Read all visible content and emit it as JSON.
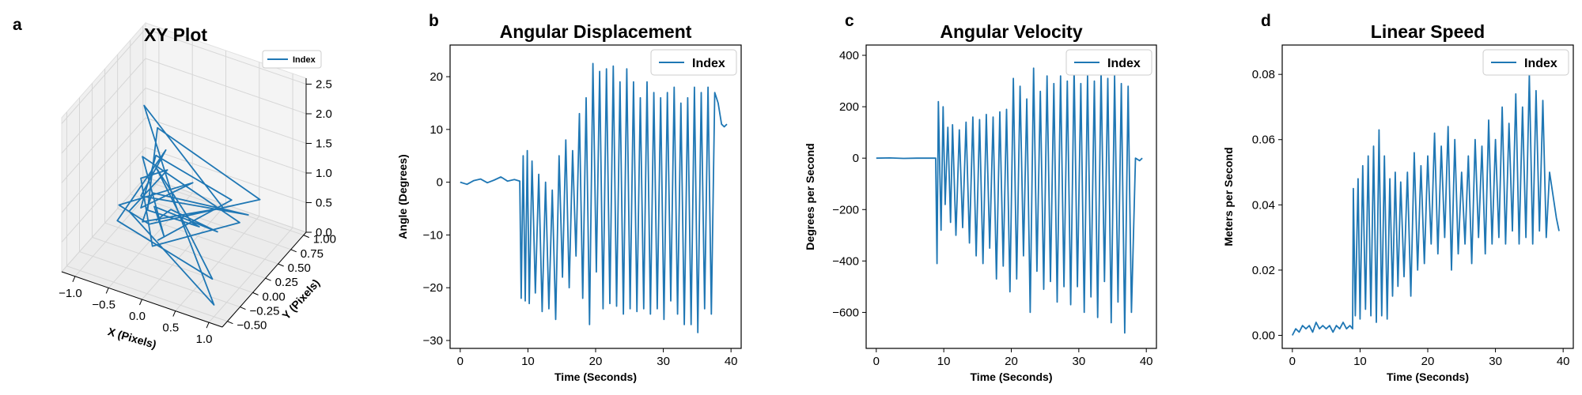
{
  "colors": {
    "series": "#1f77b4",
    "frame": "#000000",
    "pane": "#f2f2f2",
    "grid": "#d6d6d6"
  },
  "chart_data": [
    {
      "panel_label": "a",
      "type": "line",
      "projection": "3d",
      "title": "XY Plot",
      "xlabel": "X (Pixels)",
      "ylabel": "Y (Pixels)",
      "zlabel": "",
      "xticks": [
        "−1.0",
        "−0.5",
        "0.0",
        "0.5",
        "1.0"
      ],
      "yticks": [
        "−0.50",
        "−0.25",
        "0.00",
        "0.25",
        "0.50",
        "0.75",
        "1.00"
      ],
      "zticks": [
        "0.0",
        "0.5",
        "1.0",
        "1.5",
        "2.0",
        "2.5"
      ],
      "xlim": [
        -1.2,
        1.2
      ],
      "ylim": [
        -0.6,
        1.05
      ],
      "zlim": [
        0,
        2.6
      ],
      "legend": {
        "label": "Index",
        "position": "top-right"
      },
      "grid": true,
      "series": [
        {
          "name": "Index",
          "x": [
            -0.4,
            -0.1,
            0.9,
            -0.5,
            -0.2,
            -0.6,
            0.7,
            -0.3,
            -0.7,
            0.0,
            -0.8,
            1.0,
            -0.2,
            -0.5,
            0.3,
            -0.6,
            -0.3,
            0.6,
            -0.7,
            -0.1,
            -0.9,
            0.9,
            -0.4,
            -0.1,
            0.4,
            -0.6,
            -0.3,
            0.7,
            -0.5,
            -0.8,
            0.0,
            -0.7,
            -0.4,
            0.2,
            -0.3
          ],
          "y": [
            0.2,
            0.1,
            -0.3,
            0.3,
            0.1,
            0.2,
            0.4,
            0.0,
            0.3,
            -0.1,
            0.2,
            -0.5,
            0.3,
            0.1,
            0.6,
            0.2,
            0.0,
            0.7,
            0.3,
            0.0,
            0.1,
            -0.4,
            0.2,
            0.5,
            0.0,
            0.3,
            0.1,
            0.8,
            0.2,
            0.0,
            0.4,
            0.3,
            0.2,
            0.9,
            0.1
          ],
          "z": [
            0.4,
            0.8,
            1.2,
            0.5,
            0.3,
            1.4,
            0.6,
            0.2,
            0.9,
            1.7,
            0.4,
            0.2,
            0.7,
            2.4,
            0.5,
            0.3,
            1.1,
            0.4,
            0.6,
            1.9,
            0.3,
            0.5,
            1.3,
            0.2,
            0.8,
            0.4,
            2.1,
            0.6,
            0.3,
            0.7,
            1.0,
            0.4,
            1.5,
            0.3,
            0.2
          ]
        }
      ]
    },
    {
      "panel_label": "b",
      "type": "line",
      "title": "Angular Displacement",
      "xlabel": "Time (Seconds)",
      "ylabel": "Angle (Degrees)",
      "xlim": [
        -1.5,
        41.5
      ],
      "ylim": [
        -31.5,
        26
      ],
      "xticks": [
        0,
        10,
        20,
        30,
        40
      ],
      "yticks": [
        -30,
        -20,
        -10,
        0,
        10,
        20
      ],
      "legend": {
        "label": "Index",
        "position": "top-right"
      },
      "grid": false,
      "series": [
        {
          "name": "Index",
          "x": [
            0,
            1,
            2,
            3,
            4,
            5,
            6,
            7,
            8,
            8.8,
            9.0,
            9.3,
            9.6,
            9.9,
            10.2,
            10.6,
            11.1,
            11.6,
            12.1,
            12.6,
            13.1,
            13.6,
            14.1,
            14.6,
            15.1,
            15.6,
            16.1,
            16.6,
            17.1,
            17.6,
            18.1,
            18.6,
            19.1,
            19.6,
            20.1,
            20.6,
            21.1,
            21.6,
            22.1,
            22.6,
            23.1,
            23.6,
            24.1,
            24.6,
            25.1,
            25.6,
            26.1,
            26.6,
            27.1,
            27.6,
            28.1,
            28.6,
            29.1,
            29.6,
            30.1,
            30.6,
            31.1,
            31.6,
            32.1,
            32.6,
            33.1,
            33.6,
            34.1,
            34.6,
            35.1,
            35.6,
            36.1,
            36.6,
            37.1,
            37.6,
            38.1,
            38.6,
            39.0,
            39.4
          ],
          "y": [
            0,
            -0.4,
            0.3,
            0.6,
            -0.1,
            0.4,
            1.0,
            0.2,
            0.5,
            0.2,
            -22,
            5,
            -22.5,
            6,
            -23,
            4,
            -21,
            1.5,
            -24.5,
            0,
            -24,
            -1.5,
            -26,
            5,
            -18,
            8,
            -20,
            6,
            -14,
            13,
            -22,
            16,
            -27,
            22.5,
            -17,
            21,
            -24,
            21.5,
            -23,
            22,
            -23.5,
            19,
            -25,
            21.5,
            -24,
            19,
            -24.5,
            16,
            -24,
            19,
            -25,
            17,
            -24,
            16,
            -26,
            17,
            -22.5,
            18,
            -25,
            15,
            -27,
            16,
            -27,
            18,
            -28.5,
            17,
            -24,
            18,
            -25,
            17,
            15,
            11,
            10.5,
            11
          ]
        }
      ]
    },
    {
      "panel_label": "c",
      "type": "line",
      "title": "Angular Velocity",
      "xlabel": "Time (Seconds)",
      "ylabel": "Degrees per Second",
      "xlim": [
        -1.5,
        41.5
      ],
      "ylim": [
        -740,
        440
      ],
      "xticks": [
        0,
        10,
        20,
        30,
        40
      ],
      "yticks": [
        -600,
        -400,
        -200,
        0,
        200,
        400
      ],
      "legend": {
        "label": "Index",
        "position": "top-right"
      },
      "grid": false,
      "series": [
        {
          "name": "Index",
          "x": [
            0,
            2,
            4,
            6,
            8,
            8.8,
            9.0,
            9.2,
            9.6,
            9.9,
            10.2,
            10.6,
            11.0,
            11.3,
            11.8,
            12.3,
            12.8,
            13.3,
            13.8,
            14.3,
            14.8,
            15.3,
            15.8,
            16.3,
            16.8,
            17.3,
            17.8,
            18.3,
            18.8,
            19.3,
            19.8,
            20.3,
            20.8,
            21.3,
            21.8,
            22.3,
            22.8,
            23.3,
            23.8,
            24.3,
            24.8,
            25.3,
            25.8,
            26.3,
            26.8,
            27.3,
            27.8,
            28.3,
            28.8,
            29.3,
            29.8,
            30.3,
            30.8,
            31.3,
            31.8,
            32.3,
            32.8,
            33.3,
            33.8,
            34.3,
            34.8,
            35.3,
            35.8,
            36.3,
            36.8,
            37.3,
            37.8,
            38.4,
            39.0,
            39.4
          ],
          "y": [
            0,
            1,
            -1,
            0,
            0,
            0,
            -410,
            220,
            -280,
            200,
            -180,
            120,
            -250,
            130,
            -300,
            110,
            -270,
            140,
            -330,
            160,
            -380,
            150,
            -410,
            170,
            -350,
            160,
            -470,
            180,
            -420,
            190,
            -520,
            310,
            -470,
            280,
            -380,
            230,
            -600,
            350,
            -440,
            260,
            -510,
            320,
            -480,
            290,
            -560,
            320,
            -500,
            300,
            -570,
            350,
            -500,
            290,
            -600,
            320,
            -540,
            300,
            -620,
            340,
            -480,
            310,
            -640,
            320,
            -560,
            290,
            -680,
            280,
            -600,
            0,
            -10,
            0
          ]
        }
      ]
    },
    {
      "panel_label": "d",
      "type": "line",
      "title": "Linear Speed",
      "xlabel": "Time (Seconds)",
      "ylabel": "Meters per Second",
      "xlim": [
        -1.5,
        41.5
      ],
      "ylim": [
        -0.004,
        0.089
      ],
      "xticks": [
        0,
        10,
        20,
        30,
        40
      ],
      "yticks": [
        "0.00",
        "0.02",
        "0.04",
        "0.06",
        "0.08"
      ],
      "legend": {
        "label": "Index",
        "position": "top-right"
      },
      "grid": false,
      "series": [
        {
          "name": "Index",
          "x": [
            0,
            0.5,
            1,
            1.5,
            2,
            2.5,
            3,
            3.5,
            4,
            4.5,
            5,
            5.5,
            6,
            6.5,
            7,
            7.5,
            8,
            8.5,
            8.9,
            9.0,
            9.3,
            9.7,
            10.0,
            10.4,
            10.8,
            11.2,
            11.6,
            12.0,
            12.4,
            12.8,
            13.2,
            13.6,
            14.0,
            14.4,
            14.8,
            15.2,
            15.6,
            16.0,
            16.5,
            17.0,
            17.5,
            18.0,
            18.5,
            19.0,
            19.5,
            20.0,
            20.5,
            21.0,
            21.5,
            22.0,
            22.5,
            23.0,
            23.5,
            24.0,
            24.5,
            25.0,
            25.5,
            26.0,
            26.5,
            27.0,
            27.5,
            28.0,
            28.5,
            29.0,
            29.5,
            30.0,
            30.5,
            31.0,
            31.5,
            32.0,
            32.5,
            33.0,
            33.5,
            34.0,
            34.5,
            35.0,
            35.5,
            36.0,
            36.5,
            37.0,
            37.5,
            38.0,
            38.5,
            39.0,
            39.4
          ],
          "y": [
            0,
            0.002,
            0.001,
            0.003,
            0.002,
            0.003,
            0.001,
            0.004,
            0.002,
            0.003,
            0.002,
            0.003,
            0.001,
            0.003,
            0.002,
            0.004,
            0.002,
            0.003,
            0.002,
            0.045,
            0.006,
            0.048,
            0.005,
            0.052,
            0.008,
            0.055,
            0.006,
            0.058,
            0.004,
            0.063,
            0.006,
            0.055,
            0.005,
            0.048,
            0.012,
            0.05,
            0.015,
            0.047,
            0.018,
            0.05,
            0.012,
            0.056,
            0.02,
            0.052,
            0.022,
            0.055,
            0.028,
            0.062,
            0.025,
            0.058,
            0.03,
            0.064,
            0.02,
            0.06,
            0.025,
            0.05,
            0.028,
            0.055,
            0.022,
            0.06,
            0.03,
            0.058,
            0.025,
            0.066,
            0.028,
            0.06,
            0.03,
            0.07,
            0.028,
            0.065,
            0.032,
            0.074,
            0.028,
            0.07,
            0.03,
            0.08,
            0.028,
            0.075,
            0.032,
            0.072,
            0.03,
            0.05,
            0.043,
            0.036,
            0.032
          ]
        }
      ]
    }
  ]
}
